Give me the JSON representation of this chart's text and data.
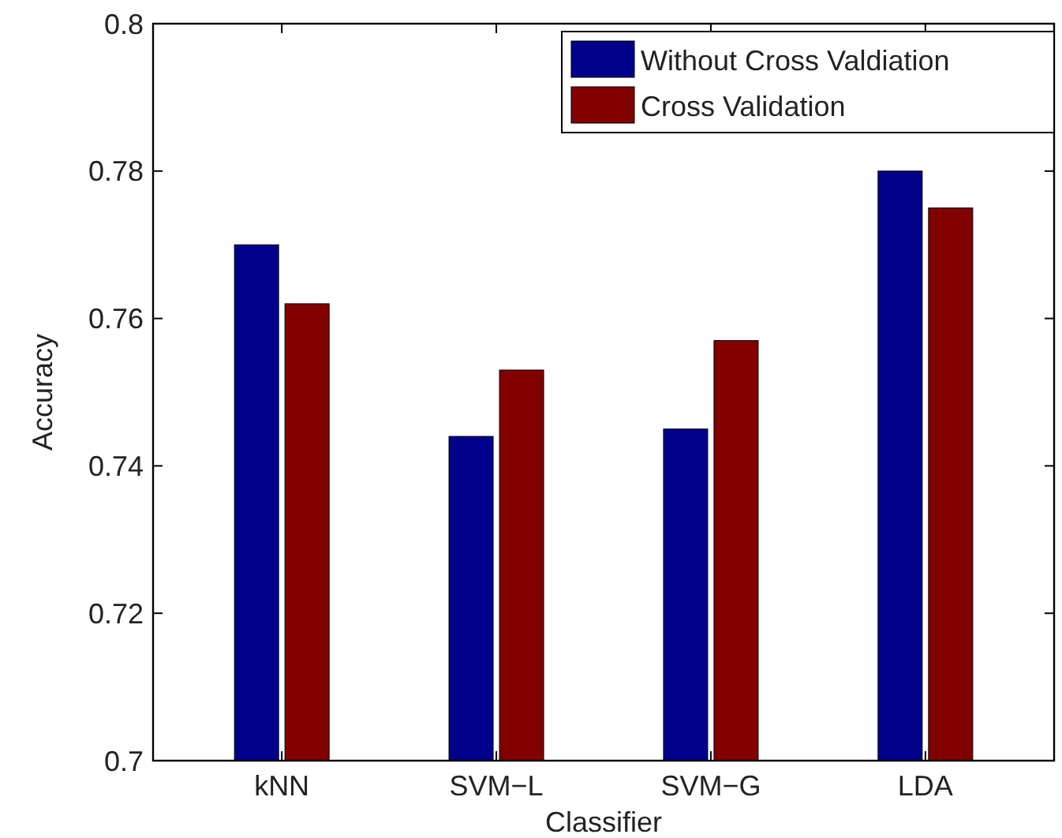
{
  "chart_data": {
    "type": "bar",
    "xlabel": "Classifier",
    "ylabel": "Accuracy",
    "categories": [
      "kNN",
      "SVM−L",
      "SVM−G",
      "LDA"
    ],
    "series": [
      {
        "name": "Without Cross Valdiation",
        "color": "#00008b",
        "values": [
          0.77,
          0.744,
          0.745,
          0.78
        ]
      },
      {
        "name": "Cross Validation",
        "color": "#820000",
        "values": [
          0.762,
          0.753,
          0.757,
          0.775
        ]
      }
    ],
    "ylim": [
      0.7,
      0.8
    ],
    "yticks": [
      0.7,
      0.72,
      0.74,
      0.76,
      0.78,
      0.8
    ],
    "legend": "top right",
    "grid": false
  }
}
